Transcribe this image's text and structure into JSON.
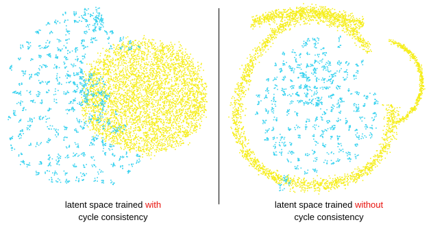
{
  "colors": {
    "cyan": "#38d2ef",
    "yellow": "#f6ee1c",
    "highlight": "#e8120c",
    "text": "#000000",
    "divider": "#000000"
  },
  "chart_data": [
    {
      "type": "scatter",
      "caption": {
        "line1_prefix": "latent space trained ",
        "line1_highlight": "with",
        "line2": "cycle consistency"
      },
      "series_colors": [
        "cyan",
        "yellow"
      ],
      "grid": false,
      "axes": false
    },
    {
      "type": "scatter",
      "caption": {
        "line1_prefix": "latent space trained ",
        "line1_highlight": "without",
        "line2": "cycle consistency"
      },
      "series_colors": [
        "cyan",
        "yellow"
      ],
      "grid": false,
      "axes": false
    }
  ]
}
